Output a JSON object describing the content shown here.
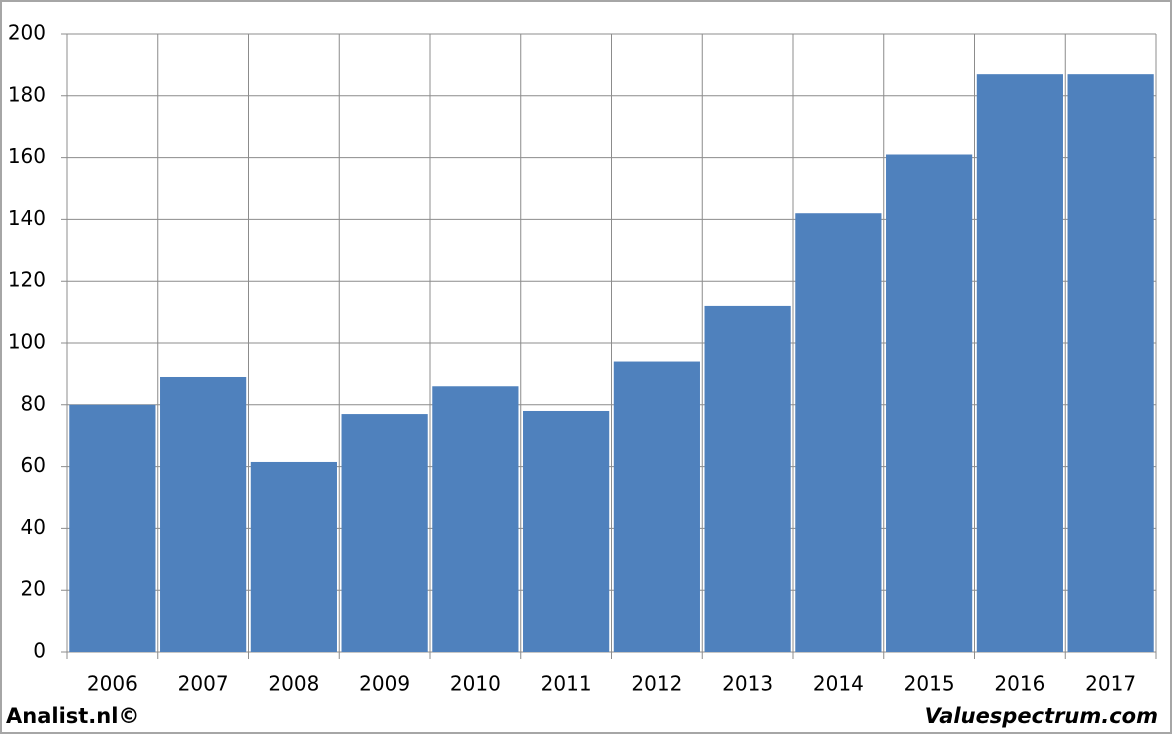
{
  "chart_data": {
    "type": "bar",
    "categories": [
      "2006",
      "2007",
      "2008",
      "2009",
      "2010",
      "2011",
      "2012",
      "2013",
      "2014",
      "2015",
      "2016",
      "2017"
    ],
    "values": [
      80,
      89,
      61.5,
      77,
      86,
      78,
      94,
      112,
      142,
      161,
      187,
      187
    ],
    "color": "#4f81bd",
    "ylim": [
      0,
      200
    ],
    "yticks": [
      0,
      20,
      40,
      60,
      80,
      100,
      120,
      140,
      160,
      180,
      200
    ],
    "grid": true
  },
  "footer": {
    "left": "Analist.nl©",
    "right": "Valuespectrum.com"
  }
}
